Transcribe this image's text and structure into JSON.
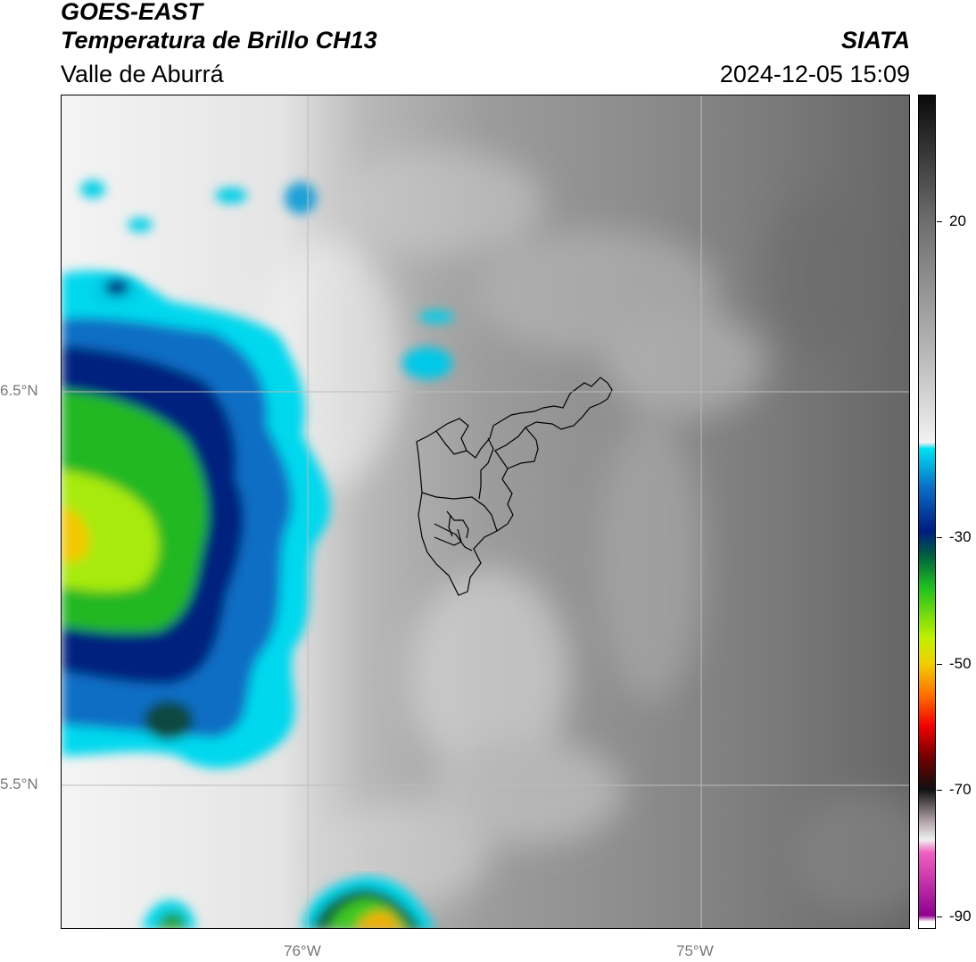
{
  "header": {
    "satellite": "GOES-EAST",
    "product": "Temperatura de Brillo CH13",
    "region": "Valle de Aburrá",
    "brand": "SIATA",
    "timestamp": "2024-12-05 15:09"
  },
  "map": {
    "lat_ticks": [
      {
        "label": "6.5°N",
        "value": 6.5
      },
      {
        "label": "5.5°N",
        "value": 5.5
      }
    ],
    "lon_ticks": [
      {
        "label": "76°W",
        "value": -76.0
      },
      {
        "label": "75°W",
        "value": -75.0
      }
    ],
    "extent": {
      "lon_min": -76.62,
      "lon_max": -74.48,
      "lat_min": 5.14,
      "lat_max": 7.25
    }
  },
  "colorbar": {
    "ticks": [
      {
        "label": "20",
        "value": 20
      },
      {
        "label": "-30",
        "value": -30
      },
      {
        "label": "-50",
        "value": -50
      },
      {
        "label": "-70",
        "value": -70
      },
      {
        "label": "-90",
        "value": -90
      }
    ],
    "range": [
      -92,
      40
    ],
    "stops": [
      {
        "value": 40,
        "color": "#0a0a0a"
      },
      {
        "value": 20,
        "color": "#6e6e6e"
      },
      {
        "value": 0,
        "color": "#b4b4b4"
      },
      {
        "value": -15,
        "color": "#f2f2f2"
      },
      {
        "value": -16,
        "color": "#00e0f0"
      },
      {
        "value": -22,
        "color": "#0a70c8"
      },
      {
        "value": -29,
        "color": "#001c80"
      },
      {
        "value": -33,
        "color": "#006040"
      },
      {
        "value": -38,
        "color": "#20c020"
      },
      {
        "value": -46,
        "color": "#c0f000"
      },
      {
        "value": -50,
        "color": "#f0d000"
      },
      {
        "value": -55,
        "color": "#ff7000"
      },
      {
        "value": -60,
        "color": "#f00000"
      },
      {
        "value": -65,
        "color": "#700000"
      },
      {
        "value": -70,
        "color": "#101010"
      },
      {
        "value": -75,
        "color": "#b0a0a8"
      },
      {
        "value": -78,
        "color": "#f0f0f0"
      },
      {
        "value": -80,
        "color": "#f060c0"
      },
      {
        "value": -90,
        "color": "#900090"
      },
      {
        "value": -91,
        "color": "#ffffff"
      }
    ]
  }
}
